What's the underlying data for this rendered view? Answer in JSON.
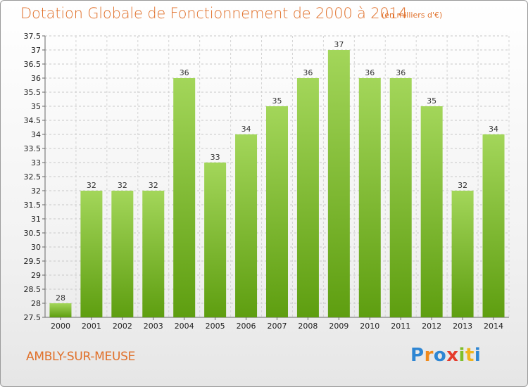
{
  "title": "Dotation Globale de Fonctionnement de 2000 à 2014",
  "subtitle": "(en milliers d'€)",
  "commune": "AMBLY-SUR-MEUSE",
  "logo": {
    "letters": [
      "P",
      "r",
      "o",
      "x",
      "i",
      "t",
      "i"
    ],
    "colors": [
      "#2e86d3",
      "#f08a1c",
      "#2e86d3",
      "#e53b2c",
      "#7fbf2a",
      "#f0b41c",
      "#2e86d3"
    ]
  },
  "colors": {
    "bar_top": "#a3d65a",
    "bar_bottom": "#5e9e10",
    "accent": "#e0702a"
  },
  "chart_data": {
    "type": "bar",
    "title": "Dotation Globale de Fonctionnement de 2000 à 2014",
    "subtitle": "(en milliers d'€)",
    "xlabel": "",
    "ylabel": "",
    "categories": [
      "2000",
      "2001",
      "2002",
      "2003",
      "2004",
      "2005",
      "2006",
      "2007",
      "2008",
      "2009",
      "2010",
      "2011",
      "2012",
      "2013",
      "2014"
    ],
    "values": [
      28,
      32,
      32,
      32,
      36,
      33,
      34,
      35,
      36,
      37,
      36,
      36,
      35,
      32,
      34
    ],
    "ylim": [
      27.5,
      37.5
    ],
    "yticks": [
      "27.5",
      "28",
      "28.5",
      "29",
      "29.5",
      "30",
      "30.5",
      "31",
      "31.5",
      "32",
      "32.5",
      "33",
      "33.5",
      "34",
      "34.5",
      "35",
      "35.5",
      "36",
      "36.5",
      "37",
      "37.5"
    ],
    "grid": true,
    "legend": "none"
  }
}
